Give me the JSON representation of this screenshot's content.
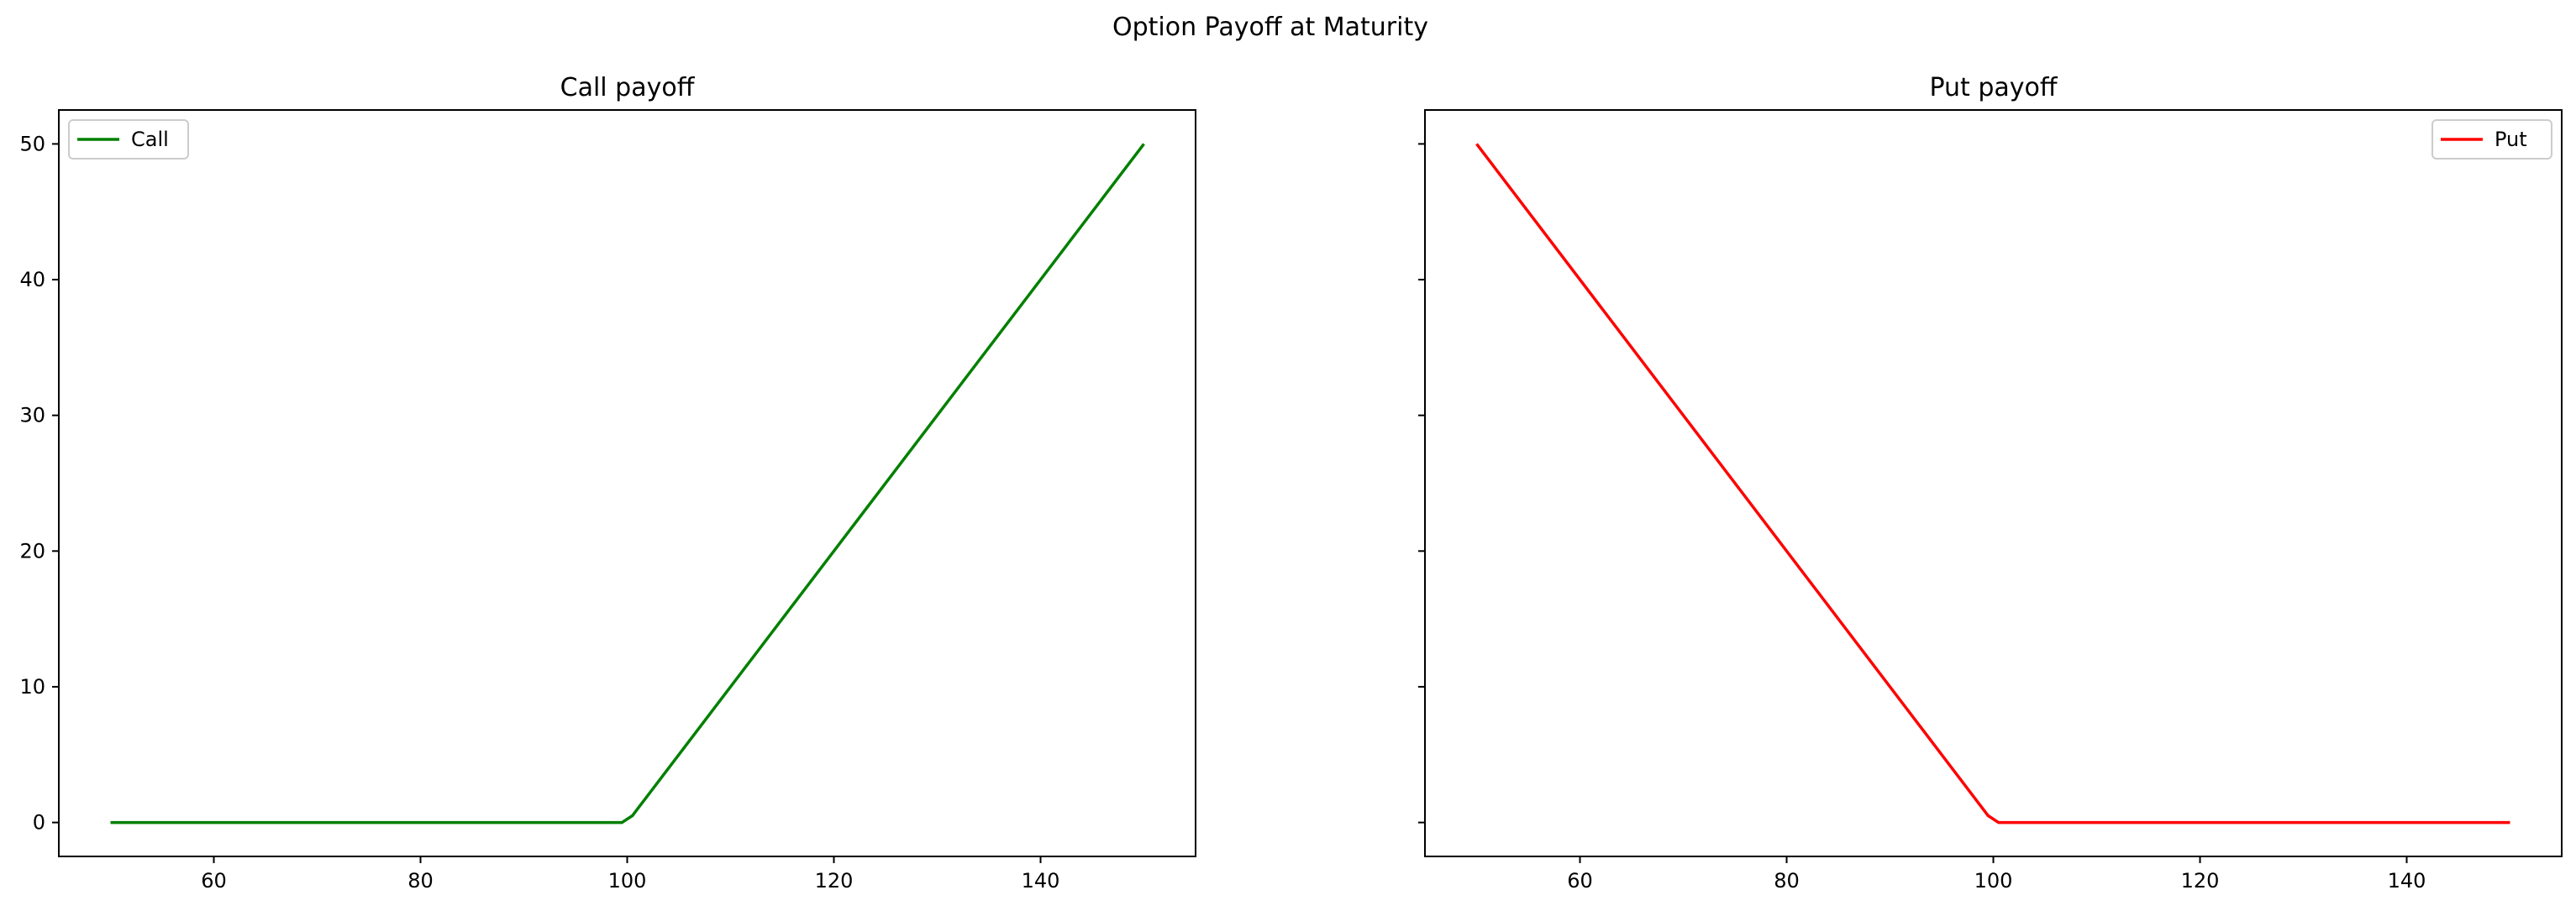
{
  "figure_title": "Option Payoff at Maturity",
  "colors": {
    "call": "#008000",
    "put": "#ff0000"
  },
  "chart_data": [
    {
      "type": "line",
      "title": "Call payoff",
      "xlabel": "",
      "ylabel": "",
      "xlim": [
        45,
        155
      ],
      "ylim": [
        -2.5,
        52.5
      ],
      "xticks": [
        60,
        80,
        100,
        120,
        140
      ],
      "yticks": [
        0,
        10,
        20,
        30,
        40,
        50
      ],
      "y_tick_labels_shown": true,
      "grid": false,
      "legend": "upper-left",
      "series": [
        {
          "name": "Call",
          "color": "#008000",
          "x": [
            50,
            99.5,
            100.5,
            150
          ],
          "y": [
            0,
            0,
            0.5,
            50
          ]
        }
      ]
    },
    {
      "type": "line",
      "title": "Put payoff",
      "xlabel": "",
      "ylabel": "",
      "xlim": [
        45,
        155
      ],
      "ylim": [
        -2.5,
        52.5
      ],
      "xticks": [
        60,
        80,
        100,
        120,
        140
      ],
      "yticks": [
        0,
        10,
        20,
        30,
        40,
        50
      ],
      "y_tick_labels_shown": false,
      "grid": false,
      "legend": "upper-right",
      "series": [
        {
          "name": "Put",
          "color": "#ff0000",
          "x": [
            50,
            99.5,
            100.5,
            150
          ],
          "y": [
            50,
            0.5,
            0,
            0
          ]
        }
      ]
    }
  ]
}
